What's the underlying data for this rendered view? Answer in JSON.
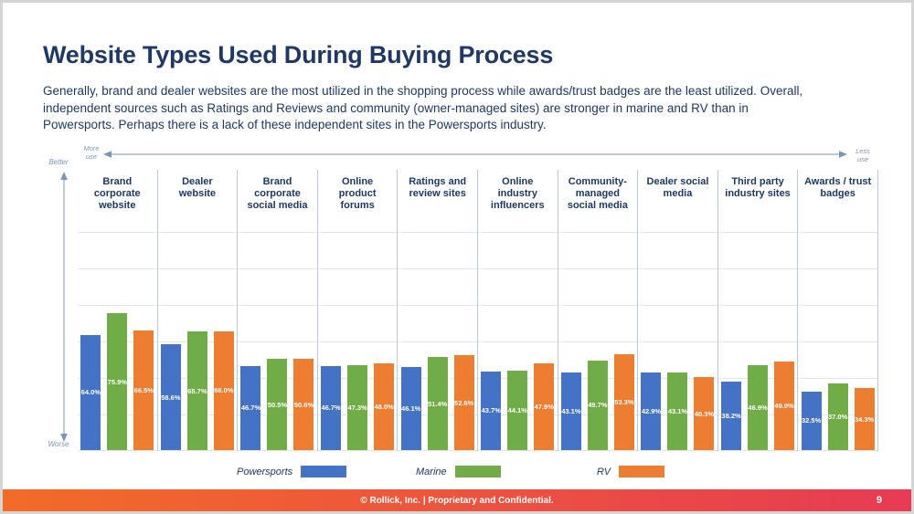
{
  "slide": {
    "title": "Website Types Used During Buying Process",
    "subtitle": "Generally, brand and dealer websites are the most utilized in the shopping process while awards/trust badges are the least utilized. Overall,\nindependent sources such as Ratings and Reviews and community (owner-managed sites) are stronger in marine and RV than in\nPowersports. Perhaps there is a lack of these independent sites in the Powersports industry.",
    "footer_text": "© Rollick, Inc.  |  Proprietary and Confidential.",
    "page_number": "9",
    "colors": {
      "heading_navy": "#1F3864",
      "footer_gradient_left": "#F26C27",
      "footer_gradient_right": "#E73B54",
      "axis_arrow": "#7B93B5",
      "group_separator": "#B5CAE3"
    }
  },
  "axis": {
    "more_use": "More\nuse",
    "less_use": "Less\nuse",
    "better": "Better",
    "worse": "Worse"
  },
  "chart_data": {
    "type": "bar",
    "title": "Website Types Used During Buying Process",
    "categories": [
      "Brand\ncorporate\nwebsite",
      "Dealer\nwebsite",
      "Brand\ncorporate\nsocial media",
      "Online\nproduct\nforums",
      "Ratings and\nreview sites",
      "Online\nindustry\ninfluencers",
      "Community-\nmanaged\nsocial media",
      "Dealer social\nmedia",
      "Third party\nindustry sites",
      "Awards / trust\nbadges"
    ],
    "series": [
      {
        "name": "Powersports",
        "color": "#4472C4",
        "values": [
          64.0,
          58.6,
          46.7,
          46.7,
          46.1,
          43.7,
          43.1,
          42.9,
          38.2,
          32.5
        ]
      },
      {
        "name": "Marine",
        "color": "#70AD47",
        "values": [
          75.9,
          65.7,
          50.5,
          47.3,
          51.4,
          44.1,
          49.7,
          43.1,
          46.9,
          37.0
        ]
      },
      {
        "name": "RV",
        "color": "#ED7D31",
        "values": [
          66.5,
          66.0,
          50.6,
          48.0,
          52.6,
          47.9,
          53.3,
          40.3,
          49.0,
          34.3
        ]
      }
    ],
    "value_suffix": "%",
    "value_format": "one_decimal",
    "data_labels": "inside_center_white",
    "xlabel": "",
    "ylabel": "",
    "ylim": [
      0,
      100
    ],
    "grid": "horizontal_light",
    "legend_position": "bottom",
    "ordering_note": "categories ordered from more use (left) to less use (right)"
  }
}
